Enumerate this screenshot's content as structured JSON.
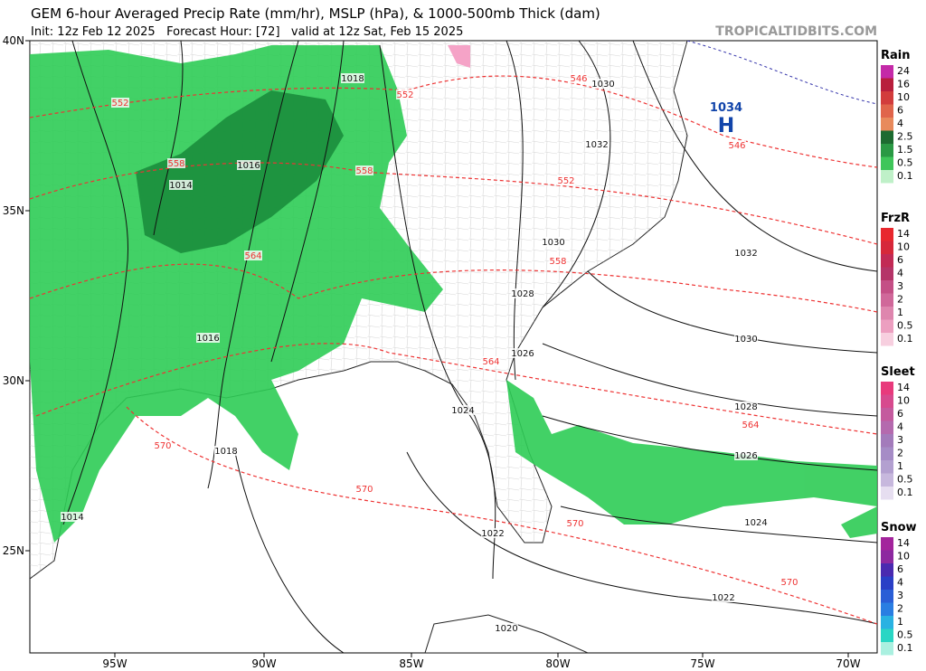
{
  "header": {
    "title": "GEM 6-hour Averaged Precip Rate (mm/hr), MSLP (hPa), & 1000-500mb Thick (dam)",
    "subtitle": "Init: 12z Feb 12 2025   Forecast Hour: [72]   valid at 12z Sat, Feb 15 2025",
    "brand": "TROPICALTIDBITS.COM"
  },
  "map": {
    "lon_labels": [
      "95W",
      "90W",
      "85W",
      "80W",
      "75W",
      "70W"
    ],
    "lat_labels": [
      "40N",
      "35N",
      "30N",
      "25N"
    ],
    "high": {
      "value": "1034",
      "label": "H"
    },
    "isobar_labels": [
      "1018",
      "1030",
      "1032",
      "1016",
      "1014",
      "1030",
      "1032",
      "1028",
      "1016",
      "1030",
      "1026",
      "1028",
      "1024",
      "1018",
      "1026",
      "1014",
      "1024",
      "1022",
      "1022",
      "1020"
    ],
    "thickness_labels": [
      "546",
      "552",
      "552",
      "546",
      "558",
      "558",
      "552",
      "564",
      "558",
      "564",
      "570",
      "564",
      "570",
      "570",
      "570"
    ]
  },
  "legend": [
    {
      "title": "Rain",
      "labels": [
        "24",
        "16",
        "10",
        "6",
        "4",
        "2.5",
        "1.5",
        "0.5",
        "0.1"
      ]
    },
    {
      "title": "FrzR",
      "labels": [
        "14",
        "10",
        "6",
        "4",
        "3",
        "2",
        "1",
        "0.5",
        "0.1"
      ]
    },
    {
      "title": "Sleet",
      "labels": [
        "14",
        "10",
        "6",
        "4",
        "3",
        "2",
        "1",
        "0.5",
        "0.1"
      ]
    },
    {
      "title": "Snow",
      "labels": [
        "14",
        "10",
        "6",
        "4",
        "3",
        "2",
        "1",
        "0.5",
        "0.1"
      ]
    }
  ]
}
